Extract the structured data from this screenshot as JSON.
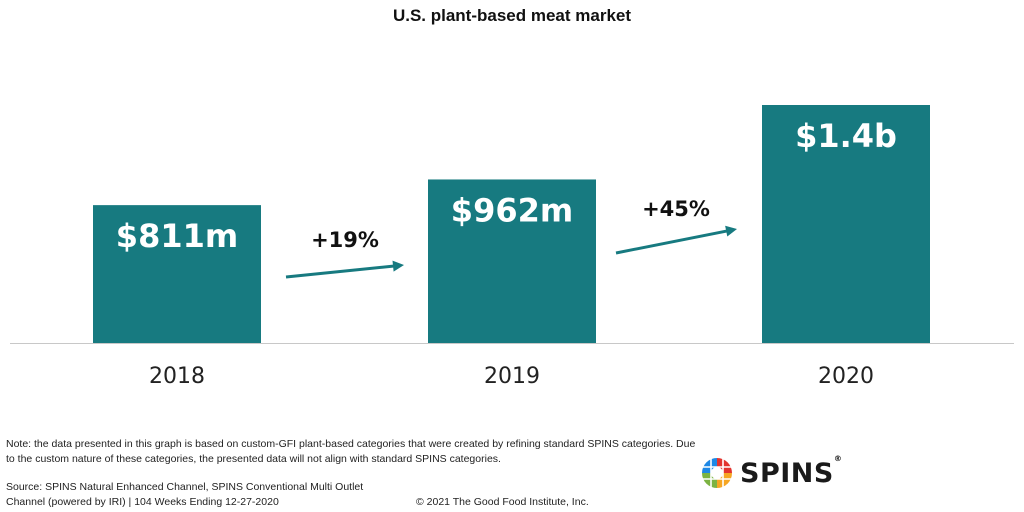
{
  "chart_data": {
    "type": "bar",
    "title": "U.S. plant-based meat market",
    "categories": [
      "2018",
      "2019",
      "2020"
    ],
    "values": [
      811,
      962,
      1400
    ],
    "unit": "USD millions",
    "data_labels": [
      "$811m",
      "$962m",
      "$1.4b"
    ],
    "annotations": [
      "+19%",
      "+45%"
    ],
    "bar_color": "#177a80",
    "arrow_color": "#177a80",
    "grid": false,
    "legend": "none",
    "ylim": [
      0,
      1500
    ]
  },
  "footer": {
    "note": "Note: the data presented in this graph is based on custom-GFI plant-based categories that were created by refining standard SPINS categories. Due to the custom nature of these categories, the presented data will not align with standard SPINS categories.",
    "source_line1": "Source: SPINS Natural Enhanced Channel, SPINS Conventional Multi Outlet",
    "source_line2": "Channel (powered by IRI) | 104 Weeks Ending 12-27-2020",
    "copyright": "© 2021 The Good Food Institute, Inc.",
    "logo_text": "SPINS",
    "logo_mark": "®"
  }
}
